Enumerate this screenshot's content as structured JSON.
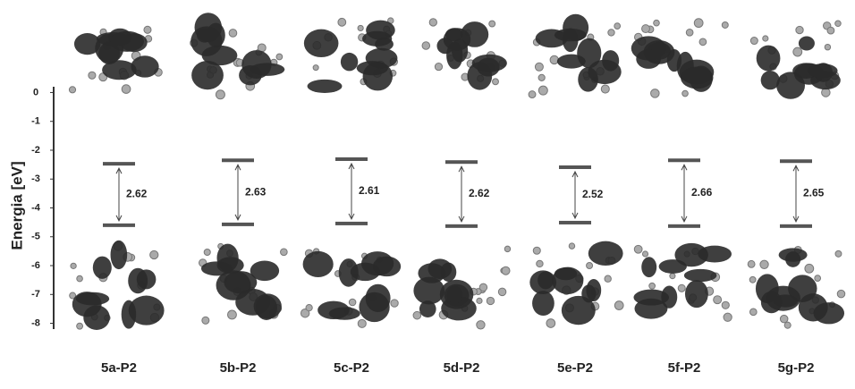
{
  "chart_data": {
    "type": "energy-level",
    "y_label": "Energia [eV]",
    "categories": [
      "5a-P2",
      "5b-P2",
      "5c-P2",
      "5d-P2",
      "5e-P2",
      "5f-P2",
      "5g-P2"
    ],
    "lumo": [
      -2.47,
      -2.35,
      -2.31,
      -2.41,
      -2.59,
      -2.35,
      -2.38
    ],
    "homo": [
      -4.6,
      -4.57,
      -4.54,
      -4.63,
      -4.51,
      -4.63,
      -4.63
    ],
    "gap": [
      2.62,
      2.63,
      2.61,
      2.62,
      2.52,
      2.66,
      2.65
    ],
    "color": "#555555",
    "ylim": [
      -8.2,
      0.2
    ],
    "yticks": [
      0,
      -1,
      -2,
      -3,
      -4,
      -5,
      -6,
      -7,
      -8
    ]
  }
}
